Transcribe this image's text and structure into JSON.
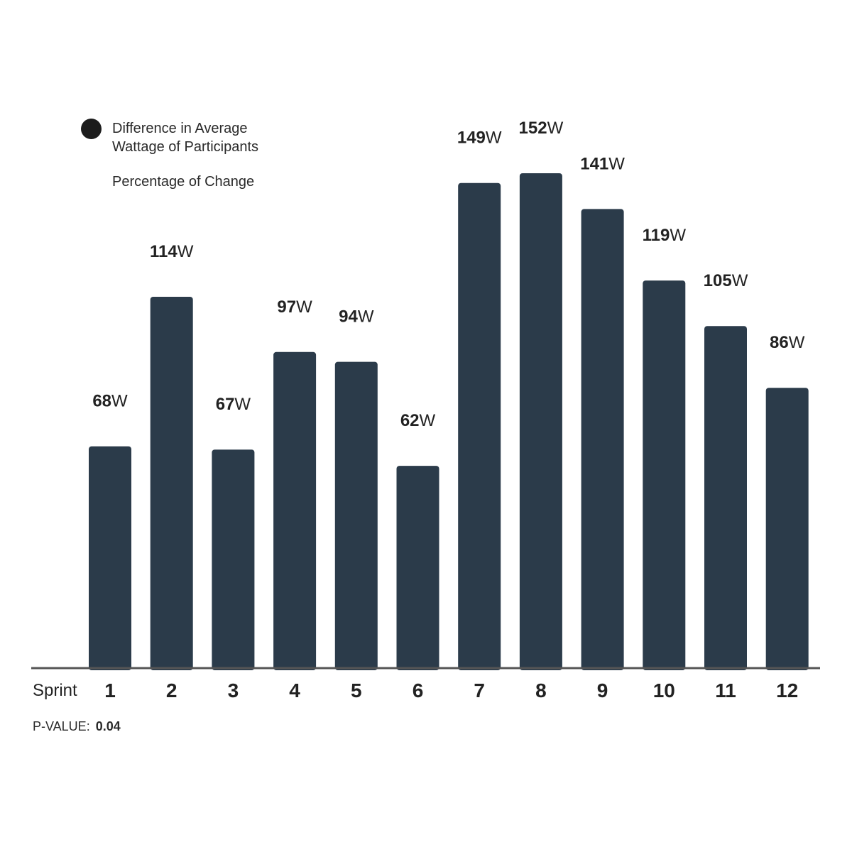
{
  "legend": {
    "series_label": "Difference in Average Wattage of Participants",
    "secondary_label": "Percentage of Change"
  },
  "footer": {
    "pvalue_label": "P-VALUE:",
    "pvalue": "0.04"
  },
  "colors": {
    "bar": "#2b3b4a",
    "axis": "#555555",
    "legend_dot": "#1c1c1c"
  },
  "chart_data": {
    "type": "bar",
    "xlabel": "Sprint",
    "categories": [
      "1",
      "2",
      "3",
      "4",
      "5",
      "6",
      "7",
      "8",
      "9",
      "10",
      "11",
      "12"
    ],
    "values": [
      68,
      114,
      67,
      97,
      94,
      62,
      149,
      152,
      141,
      119,
      105,
      86
    ],
    "unit": "W",
    "ylim": [
      0,
      152
    ],
    "grid": false,
    "legend_position": "top-left"
  }
}
